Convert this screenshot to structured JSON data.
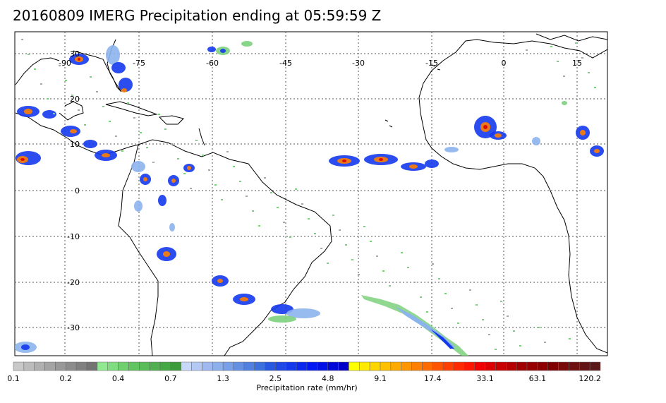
{
  "title": "20160809 IMERG Precipitation ending at 05:59:59 Z",
  "map": {
    "lon_range": [
      -100,
      20
    ],
    "lat_range": [
      -36,
      34
    ],
    "lon_ticks": [
      "-90",
      "-75",
      "-60",
      "-45",
      "-30",
      "-15",
      "0",
      "15"
    ],
    "lat_ticks": [
      "30",
      "20",
      "10",
      "0",
      "-10",
      "-20",
      "-30"
    ]
  },
  "colorbar": {
    "units_label": "Precipitation rate (mm/hr)",
    "tick_labels": [
      "0.1",
      "0.2",
      "0.4",
      "0.7",
      "1.3",
      "2.5",
      "4.8",
      "9.1",
      "17.4",
      "33.1",
      "63.1",
      "120.2"
    ],
    "colors": [
      "#c8c8c8",
      "#bcbcbc",
      "#b0b0b0",
      "#a4a4a4",
      "#989898",
      "#8c8c8c",
      "#808080",
      "#747474",
      "#90e890",
      "#80dc80",
      "#70d070",
      "#60c460",
      "#58bc58",
      "#50b050",
      "#44a844",
      "#3c9c3c",
      "#c8d8f8",
      "#b4c8f4",
      "#a0b8f0",
      "#8cb0ec",
      "#78a0e8",
      "#6490e4",
      "#5080e0",
      "#3c70dc",
      "#2858e0",
      "#1e48e8",
      "#1438ec",
      "#0a28f0",
      "#0018f4",
      "#0010e8",
      "#0008d8",
      "#0000c8",
      "#ffff00",
      "#ffea00",
      "#ffd500",
      "#ffc000",
      "#ffaa00",
      "#ff9500",
      "#ff8000",
      "#ff6a00",
      "#ff5500",
      "#ff4000",
      "#ff2a00",
      "#ff1500",
      "#f00000",
      "#dc0000",
      "#c80000",
      "#b40000",
      "#a00000",
      "#960000",
      "#8c0000",
      "#800000",
      "#780a0a",
      "#6e1010",
      "#641414",
      "#5a1818"
    ]
  }
}
